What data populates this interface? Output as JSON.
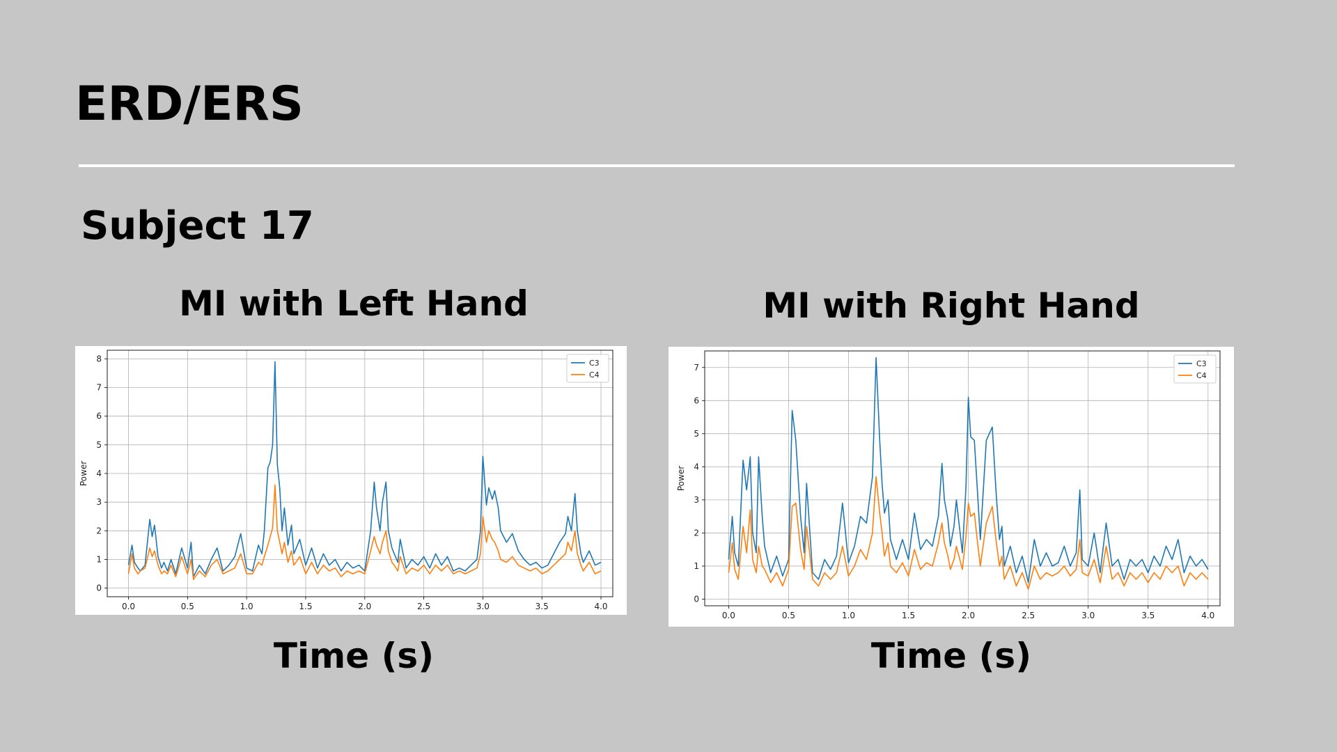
{
  "slide": {
    "title": "ERD/ERS",
    "subtitle": "Subject 17"
  },
  "panels": [
    {
      "title": "MI with Left Hand",
      "xcaption": "Time (s)"
    },
    {
      "title": "MI with Right Hand",
      "xcaption": "Time (s)"
    }
  ],
  "colors": {
    "C3": "#1f77b4",
    "C4": "#ff7f0e",
    "background": "#c6c6c6",
    "grid": "#b0b0b0"
  },
  "chart_data": [
    {
      "type": "line",
      "title": "",
      "xlabel": "",
      "ylabel": "Power",
      "xlim": [
        -0.18,
        4.1
      ],
      "ylim": [
        -0.3,
        8.3
      ],
      "xticks": [
        "0.0",
        "0.5",
        "1.0",
        "1.5",
        "2.0",
        "2.5",
        "3.0",
        "3.5",
        "4.0"
      ],
      "yticks": [
        "0",
        "1",
        "2",
        "3",
        "4",
        "5",
        "6",
        "7",
        "8"
      ],
      "grid": true,
      "legend": "top-right",
      "series": [
        {
          "name": "C3",
          "color": "#1f77b4",
          "x": [
            0.0,
            0.03,
            0.05,
            0.08,
            0.1,
            0.14,
            0.18,
            0.2,
            0.22,
            0.25,
            0.28,
            0.3,
            0.33,
            0.36,
            0.4,
            0.45,
            0.5,
            0.53,
            0.55,
            0.6,
            0.65,
            0.7,
            0.75,
            0.8,
            0.85,
            0.9,
            0.95,
            1.0,
            1.05,
            1.1,
            1.13,
            1.15,
            1.18,
            1.2,
            1.22,
            1.24,
            1.26,
            1.28,
            1.3,
            1.32,
            1.35,
            1.38,
            1.4,
            1.45,
            1.5,
            1.55,
            1.6,
            1.65,
            1.7,
            1.75,
            1.8,
            1.85,
            1.9,
            1.95,
            2.0,
            2.05,
            2.08,
            2.1,
            2.13,
            2.15,
            2.18,
            2.2,
            2.23,
            2.25,
            2.28,
            2.3,
            2.35,
            2.4,
            2.45,
            2.5,
            2.55,
            2.6,
            2.65,
            2.7,
            2.75,
            2.8,
            2.85,
            2.9,
            2.95,
            2.98,
            3.0,
            3.03,
            3.05,
            3.08,
            3.1,
            3.13,
            3.15,
            3.2,
            3.25,
            3.3,
            3.35,
            3.4,
            3.45,
            3.5,
            3.55,
            3.6,
            3.65,
            3.7,
            3.72,
            3.75,
            3.78,
            3.8,
            3.83,
            3.85,
            3.9,
            3.95,
            4.0
          ],
          "y": [
            0.8,
            1.5,
            0.9,
            0.7,
            0.6,
            0.8,
            2.4,
            1.8,
            2.2,
            1.1,
            0.7,
            0.9,
            0.6,
            1.0,
            0.5,
            1.4,
            0.7,
            1.6,
            0.4,
            0.8,
            0.5,
            1.0,
            1.4,
            0.6,
            0.8,
            1.1,
            1.9,
            0.7,
            0.6,
            1.5,
            1.2,
            2.0,
            4.2,
            4.4,
            5.0,
            7.9,
            4.3,
            3.5,
            2.0,
            2.8,
            1.5,
            2.2,
            1.2,
            1.7,
            0.8,
            1.4,
            0.7,
            1.2,
            0.8,
            1.0,
            0.6,
            0.9,
            0.7,
            0.8,
            0.6,
            2.0,
            3.7,
            2.8,
            2.0,
            3.0,
            3.7,
            2.0,
            1.4,
            1.2,
            0.9,
            1.7,
            0.7,
            1.0,
            0.8,
            1.1,
            0.7,
            1.2,
            0.8,
            1.1,
            0.6,
            0.7,
            0.6,
            0.8,
            1.0,
            2.0,
            4.6,
            2.9,
            3.5,
            3.1,
            3.4,
            2.8,
            2.0,
            1.6,
            1.9,
            1.3,
            1.0,
            0.8,
            0.9,
            0.7,
            0.8,
            1.2,
            1.6,
            1.9,
            2.5,
            2.0,
            3.3,
            2.0,
            1.2,
            0.9,
            1.3,
            0.8,
            0.9
          ]
        },
        {
          "name": "C4",
          "color": "#ff7f0e",
          "x": [
            0.0,
            0.03,
            0.05,
            0.08,
            0.1,
            0.14,
            0.18,
            0.2,
            0.22,
            0.25,
            0.28,
            0.3,
            0.33,
            0.36,
            0.4,
            0.45,
            0.5,
            0.53,
            0.55,
            0.6,
            0.65,
            0.7,
            0.75,
            0.8,
            0.85,
            0.9,
            0.95,
            1.0,
            1.05,
            1.1,
            1.13,
            1.15,
            1.18,
            1.2,
            1.22,
            1.24,
            1.26,
            1.28,
            1.3,
            1.32,
            1.35,
            1.38,
            1.4,
            1.45,
            1.5,
            1.55,
            1.6,
            1.65,
            1.7,
            1.75,
            1.8,
            1.85,
            1.9,
            1.95,
            2.0,
            2.05,
            2.08,
            2.1,
            2.13,
            2.15,
            2.18,
            2.2,
            2.23,
            2.25,
            2.28,
            2.3,
            2.35,
            2.4,
            2.45,
            2.5,
            2.55,
            2.6,
            2.65,
            2.7,
            2.75,
            2.8,
            2.85,
            2.9,
            2.95,
            2.98,
            3.0,
            3.03,
            3.05,
            3.08,
            3.1,
            3.13,
            3.15,
            3.2,
            3.25,
            3.3,
            3.35,
            3.4,
            3.45,
            3.5,
            3.55,
            3.6,
            3.65,
            3.7,
            3.72,
            3.75,
            3.78,
            3.8,
            3.83,
            3.85,
            3.9,
            3.95,
            4.0
          ],
          "y": [
            0.5,
            1.2,
            0.7,
            0.5,
            0.6,
            0.7,
            1.4,
            1.1,
            1.3,
            0.8,
            0.5,
            0.6,
            0.5,
            0.8,
            0.4,
            1.1,
            0.5,
            1.0,
            0.3,
            0.6,
            0.4,
            0.8,
            1.0,
            0.5,
            0.6,
            0.7,
            1.2,
            0.5,
            0.5,
            0.9,
            0.8,
            1.1,
            1.5,
            1.8,
            2.1,
            3.6,
            2.0,
            1.6,
            1.2,
            1.6,
            0.9,
            1.3,
            0.8,
            1.1,
            0.5,
            0.9,
            0.5,
            0.8,
            0.6,
            0.7,
            0.4,
            0.6,
            0.5,
            0.6,
            0.5,
            1.3,
            1.8,
            1.5,
            1.2,
            1.6,
            2.0,
            1.3,
            0.9,
            0.8,
            0.6,
            1.1,
            0.5,
            0.7,
            0.6,
            0.8,
            0.5,
            0.8,
            0.6,
            0.8,
            0.5,
            0.6,
            0.5,
            0.6,
            0.7,
            1.2,
            2.5,
            1.6,
            2.0,
            1.7,
            1.6,
            1.3,
            1.0,
            0.9,
            1.1,
            0.8,
            0.7,
            0.6,
            0.7,
            0.5,
            0.6,
            0.8,
            1.0,
            1.2,
            1.6,
            1.3,
            2.0,
            1.2,
            0.8,
            0.6,
            0.9,
            0.5,
            0.6
          ]
        }
      ]
    },
    {
      "type": "line",
      "title": "",
      "xlabel": "",
      "ylabel": "Power",
      "xlim": [
        -0.2,
        4.1
      ],
      "ylim": [
        -0.2,
        7.5
      ],
      "xticks": [
        "0.0",
        "0.5",
        "1.0",
        "1.5",
        "2.0",
        "2.5",
        "3.0",
        "3.5",
        "4.0"
      ],
      "yticks": [
        "0",
        "1",
        "2",
        "3",
        "4",
        "5",
        "6",
        "7"
      ],
      "grid": true,
      "legend": "top-right",
      "series": [
        {
          "name": "C3",
          "color": "#1f77b4",
          "x": [
            0.0,
            0.03,
            0.05,
            0.08,
            0.12,
            0.15,
            0.18,
            0.2,
            0.23,
            0.25,
            0.28,
            0.3,
            0.35,
            0.4,
            0.45,
            0.5,
            0.53,
            0.56,
            0.6,
            0.63,
            0.65,
            0.7,
            0.75,
            0.8,
            0.85,
            0.9,
            0.95,
            1.0,
            1.05,
            1.1,
            1.15,
            1.2,
            1.23,
            1.26,
            1.28,
            1.3,
            1.33,
            1.35,
            1.4,
            1.45,
            1.5,
            1.55,
            1.6,
            1.65,
            1.7,
            1.75,
            1.78,
            1.8,
            1.83,
            1.85,
            1.88,
            1.9,
            1.95,
            1.98,
            2.0,
            2.02,
            2.05,
            2.08,
            2.1,
            2.15,
            2.2,
            2.23,
            2.26,
            2.28,
            2.3,
            2.35,
            2.4,
            2.45,
            2.5,
            2.55,
            2.6,
            2.65,
            2.7,
            2.75,
            2.8,
            2.85,
            2.9,
            2.93,
            2.95,
            3.0,
            3.05,
            3.1,
            3.15,
            3.2,
            3.25,
            3.3,
            3.35,
            3.4,
            3.45,
            3.5,
            3.55,
            3.6,
            3.65,
            3.7,
            3.75,
            3.8,
            3.85,
            3.9,
            3.95,
            4.0
          ],
          "y": [
            1.2,
            2.5,
            1.4,
            1.0,
            4.2,
            3.3,
            4.3,
            2.0,
            1.4,
            4.3,
            2.5,
            1.6,
            0.8,
            1.3,
            0.7,
            1.2,
            5.7,
            4.8,
            2.5,
            1.4,
            3.5,
            0.8,
            0.6,
            1.2,
            0.9,
            1.3,
            2.9,
            1.1,
            1.6,
            2.5,
            2.3,
            3.7,
            7.3,
            4.8,
            3.5,
            2.6,
            3.0,
            1.8,
            1.2,
            1.8,
            1.2,
            2.6,
            1.5,
            1.8,
            1.6,
            2.5,
            4.1,
            3.0,
            2.4,
            1.6,
            2.2,
            3.0,
            1.4,
            3.4,
            6.1,
            4.9,
            4.8,
            3.0,
            1.8,
            4.8,
            5.2,
            3.3,
            1.8,
            2.2,
            1.0,
            1.6,
            0.8,
            1.3,
            0.5,
            1.8,
            1.0,
            1.4,
            1.0,
            1.1,
            1.6,
            1.0,
            1.4,
            3.3,
            1.2,
            1.0,
            2.0,
            0.8,
            2.3,
            1.0,
            1.2,
            0.6,
            1.2,
            1.0,
            1.2,
            0.8,
            1.3,
            1.0,
            1.6,
            1.2,
            1.8,
            0.8,
            1.3,
            1.0,
            1.2,
            0.9
          ]
        },
        {
          "name": "C4",
          "color": "#ff7f0e",
          "x": [
            0.0,
            0.03,
            0.05,
            0.08,
            0.12,
            0.15,
            0.18,
            0.2,
            0.23,
            0.25,
            0.28,
            0.3,
            0.35,
            0.4,
            0.45,
            0.5,
            0.53,
            0.56,
            0.6,
            0.63,
            0.65,
            0.7,
            0.75,
            0.8,
            0.85,
            0.9,
            0.95,
            1.0,
            1.05,
            1.1,
            1.15,
            1.2,
            1.23,
            1.26,
            1.28,
            1.3,
            1.33,
            1.35,
            1.4,
            1.45,
            1.5,
            1.55,
            1.6,
            1.65,
            1.7,
            1.75,
            1.78,
            1.8,
            1.83,
            1.85,
            1.88,
            1.9,
            1.95,
            1.98,
            2.0,
            2.02,
            2.05,
            2.08,
            2.1,
            2.15,
            2.2,
            2.23,
            2.26,
            2.28,
            2.3,
            2.35,
            2.4,
            2.45,
            2.5,
            2.55,
            2.6,
            2.65,
            2.7,
            2.75,
            2.8,
            2.85,
            2.9,
            2.93,
            2.95,
            3.0,
            3.05,
            3.1,
            3.15,
            3.2,
            3.25,
            3.3,
            3.35,
            3.4,
            3.45,
            3.5,
            3.55,
            3.6,
            3.65,
            3.7,
            3.75,
            3.8,
            3.85,
            3.9,
            3.95,
            4.0
          ],
          "y": [
            0.8,
            1.7,
            0.9,
            0.6,
            2.2,
            1.4,
            2.7,
            1.2,
            0.8,
            1.6,
            1.0,
            0.9,
            0.5,
            0.8,
            0.4,
            0.9,
            2.8,
            2.9,
            1.5,
            0.9,
            2.2,
            0.6,
            0.4,
            0.8,
            0.6,
            0.8,
            1.6,
            0.7,
            1.0,
            1.5,
            1.2,
            2.0,
            3.7,
            2.6,
            2.0,
            1.3,
            1.7,
            1.0,
            0.8,
            1.1,
            0.7,
            1.5,
            0.9,
            1.1,
            1.0,
            1.7,
            2.3,
            1.7,
            1.3,
            0.9,
            1.2,
            1.6,
            0.9,
            1.9,
            2.9,
            2.5,
            2.6,
            1.6,
            1.0,
            2.3,
            2.8,
            1.8,
            1.0,
            1.3,
            0.6,
            1.0,
            0.4,
            0.8,
            0.3,
            1.0,
            0.6,
            0.8,
            0.7,
            0.8,
            1.0,
            0.7,
            0.9,
            1.8,
            0.8,
            0.7,
            1.2,
            0.5,
            1.6,
            0.6,
            0.8,
            0.4,
            0.8,
            0.6,
            0.8,
            0.5,
            0.8,
            0.6,
            1.0,
            0.8,
            1.0,
            0.4,
            0.8,
            0.6,
            0.8,
            0.6
          ]
        }
      ]
    }
  ]
}
